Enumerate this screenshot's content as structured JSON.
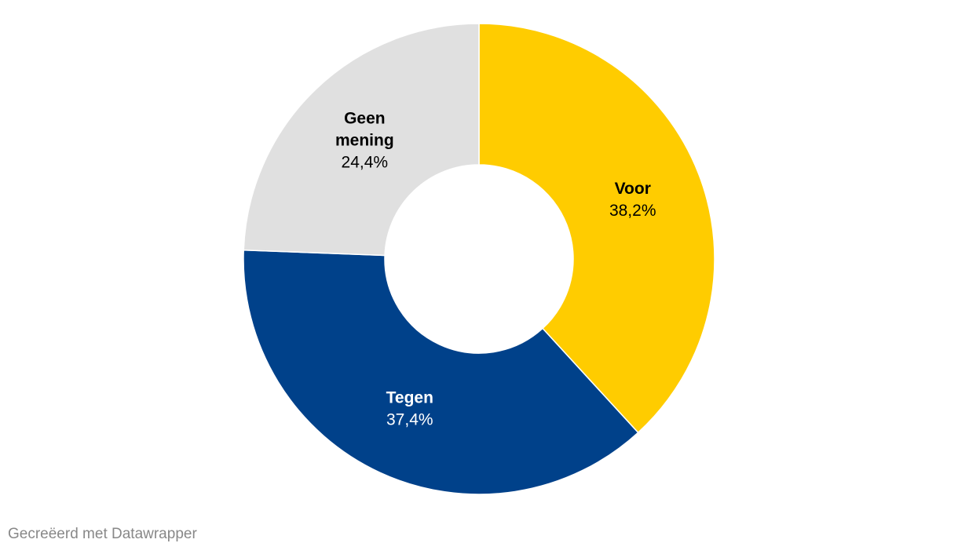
{
  "chart_data": {
    "type": "pie",
    "variant": "donut",
    "categories": [
      "Voor",
      "Tegen",
      "Geen mening"
    ],
    "values": [
      38.2,
      37.4,
      24.4
    ],
    "value_labels": [
      "38,2%",
      "37,4%",
      "24,4%"
    ],
    "colors": [
      "#ffcc00",
      "#00418a",
      "#e0e0e0"
    ],
    "label_colors": [
      "#000000",
      "#ffffff",
      "#000000"
    ],
    "start": "top, clockwise",
    "title": "",
    "legend": "none"
  },
  "footer": {
    "credit": "Gecreëerd met Datawrapper"
  }
}
